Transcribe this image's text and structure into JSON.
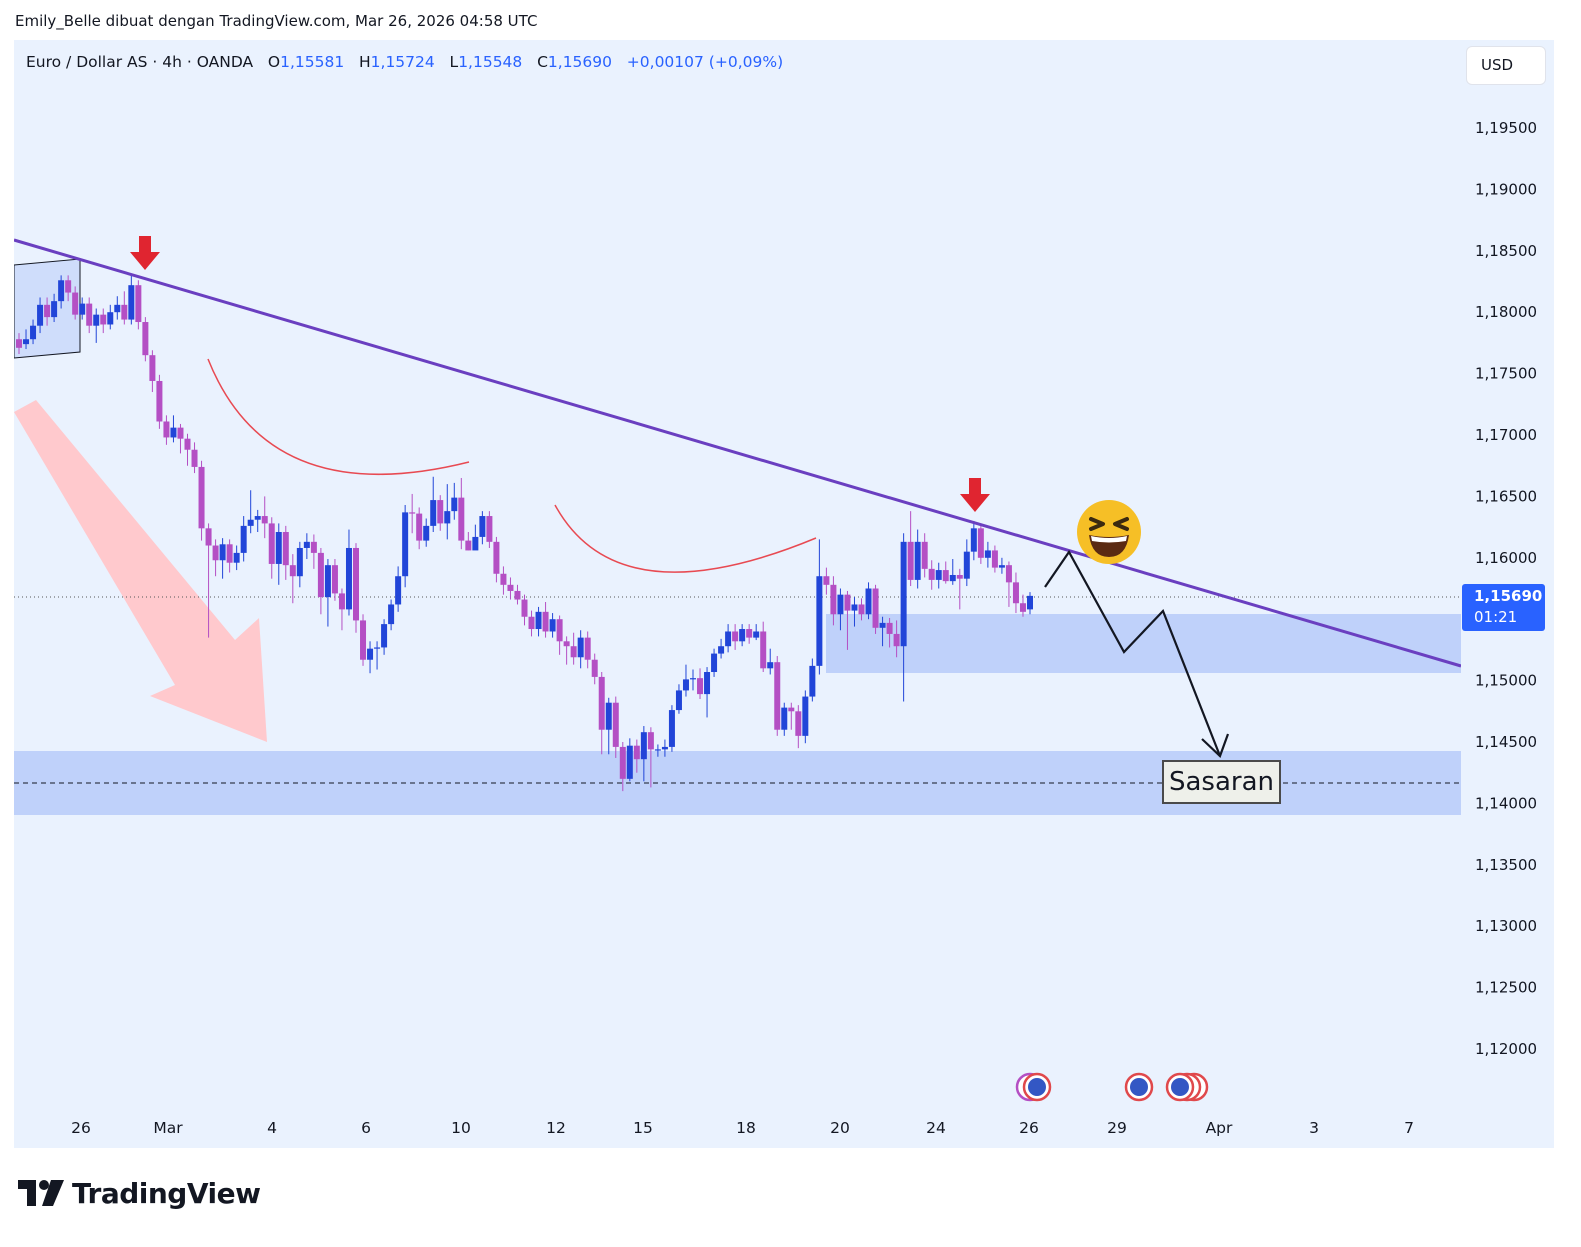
{
  "attribution": "Emily_Belle dibuat dengan TradingView.com, Mar 26, 2026 04:58 UTC",
  "header": {
    "symbol": "Euro / Dollar AS · 4h · OANDA",
    "open_label": "O",
    "open": "1,15581",
    "high_label": "H",
    "high": "1,15724",
    "low_label": "L",
    "low": "1,15548",
    "close_label": "C",
    "close": "1,15690",
    "change": "+0,00107 (+0,09%)"
  },
  "currency": "USD",
  "price_tag": {
    "price": "1,15690",
    "countdown": "01:21"
  },
  "target_label": "Sasaran",
  "logo_text": "TradingView",
  "colors": {
    "background": "#eaf2fe",
    "bull": "#2145d8",
    "bear": "#b44fc4",
    "trendline": "#6a3fc0",
    "zone": "#b7cbf9",
    "arrow_marker": "#e02530",
    "arc": "#e84a52",
    "big_arrow": "#ffc9cd",
    "price_tag": "#2962ff"
  },
  "chart_data": {
    "type": "candlestick",
    "title": "Euro / Dollar AS · 4h · OANDA",
    "y_axis": {
      "ticks": [
        "1,19500",
        "1,19000",
        "1,18500",
        "1,18000",
        "1,17500",
        "1,17000",
        "1,16500",
        "1,16000",
        "1,15500",
        "1,15000",
        "1,14500",
        "1,14000",
        "1,13500",
        "1,13000",
        "1,12500",
        "1,12000"
      ],
      "range": [
        1.1165,
        1.2025
      ]
    },
    "x_axis": {
      "ticks": [
        "26",
        "Mar",
        "4",
        "6",
        "10",
        "12",
        "15",
        "18",
        "20",
        "24",
        "26",
        "29",
        "Apr",
        "3",
        "7"
      ]
    },
    "last_price": 1.1569,
    "candles": [
      [
        1.1778,
        1.1771,
        1.1783,
        1.1766
      ],
      [
        1.1774,
        1.1778,
        1.1786,
        1.177
      ],
      [
        1.1778,
        1.1789,
        1.1794,
        1.1774
      ],
      [
        1.1789,
        1.1806,
        1.1812,
        1.1783
      ],
      [
        1.1806,
        1.1796,
        1.1812,
        1.1789
      ],
      [
        1.1796,
        1.1809,
        1.1815,
        1.1792
      ],
      [
        1.1809,
        1.1826,
        1.183,
        1.1803
      ],
      [
        1.1826,
        1.1816,
        1.183,
        1.1809
      ],
      [
        1.1816,
        1.1798,
        1.1821,
        1.1794
      ],
      [
        1.1798,
        1.1807,
        1.1812,
        1.1794
      ],
      [
        1.1807,
        1.1789,
        1.1812,
        1.1783
      ],
      [
        1.1789,
        1.1798,
        1.1803,
        1.1775
      ],
      [
        1.1798,
        1.179,
        1.1803,
        1.1783
      ],
      [
        1.179,
        1.18,
        1.1806,
        1.1786
      ],
      [
        1.18,
        1.1806,
        1.1813,
        1.1794
      ],
      [
        1.1806,
        1.1794,
        1.1817,
        1.179
      ],
      [
        1.1794,
        1.1822,
        1.183,
        1.179
      ],
      [
        1.1822,
        1.1792,
        1.1826,
        1.1786
      ],
      [
        1.1792,
        1.1765,
        1.1796,
        1.176
      ],
      [
        1.1765,
        1.1744,
        1.1769,
        1.1735
      ],
      [
        1.1744,
        1.1711,
        1.1749,
        1.1705
      ],
      [
        1.1711,
        1.1698,
        1.1716,
        1.1692
      ],
      [
        1.1698,
        1.1706,
        1.1716,
        1.1694
      ],
      [
        1.1706,
        1.1697,
        1.1709,
        1.1685
      ],
      [
        1.1697,
        1.1688,
        1.1701,
        1.1675
      ],
      [
        1.1688,
        1.1674,
        1.1694,
        1.1669
      ],
      [
        1.1674,
        1.1624,
        1.1679,
        1.1614
      ],
      [
        1.1624,
        1.161,
        1.1628,
        1.1535
      ],
      [
        1.161,
        1.1598,
        1.1615,
        1.1585
      ],
      [
        1.1598,
        1.1611,
        1.1616,
        1.1583
      ],
      [
        1.1611,
        1.1596,
        1.1615,
        1.1588
      ],
      [
        1.1596,
        1.1604,
        1.161,
        1.159
      ],
      [
        1.1604,
        1.1626,
        1.1634,
        1.1597
      ],
      [
        1.1626,
        1.1631,
        1.1655,
        1.162
      ],
      [
        1.1631,
        1.1634,
        1.1639,
        1.1621
      ],
      [
        1.1634,
        1.1628,
        1.165,
        1.1616
      ],
      [
        1.1628,
        1.1595,
        1.1633,
        1.1583
      ],
      [
        1.1595,
        1.1621,
        1.1628,
        1.1578
      ],
      [
        1.1621,
        1.1594,
        1.1626,
        1.1582
      ],
      [
        1.1594,
        1.1585,
        1.1603,
        1.1563
      ],
      [
        1.1585,
        1.1608,
        1.1613,
        1.1576
      ],
      [
        1.1608,
        1.1613,
        1.162,
        1.1599
      ],
      [
        1.1613,
        1.1604,
        1.1619,
        1.1591
      ],
      [
        1.1604,
        1.1568,
        1.1608,
        1.1554
      ],
      [
        1.1568,
        1.1594,
        1.1599,
        1.1544
      ],
      [
        1.1594,
        1.1571,
        1.1599,
        1.1565
      ],
      [
        1.1571,
        1.1558,
        1.1575,
        1.1541
      ],
      [
        1.1558,
        1.1608,
        1.1623,
        1.1553
      ],
      [
        1.1608,
        1.1549,
        1.1612,
        1.1539
      ],
      [
        1.1549,
        1.1517,
        1.1554,
        1.1512
      ],
      [
        1.1517,
        1.1526,
        1.1532,
        1.1506
      ],
      [
        1.1526,
        1.1527,
        1.1532,
        1.1509
      ],
      [
        1.1527,
        1.1546,
        1.155,
        1.1521
      ],
      [
        1.1546,
        1.1562,
        1.1566,
        1.1541
      ],
      [
        1.1562,
        1.1585,
        1.1593,
        1.1556
      ],
      [
        1.1585,
        1.1637,
        1.1643,
        1.1576
      ],
      [
        1.1637,
        1.1636,
        1.1652,
        1.162
      ],
      [
        1.1636,
        1.1614,
        1.1641,
        1.1607
      ],
      [
        1.1614,
        1.1626,
        1.1632,
        1.1609
      ],
      [
        1.1626,
        1.1647,
        1.1666,
        1.1621
      ],
      [
        1.1647,
        1.1628,
        1.1651,
        1.1622
      ],
      [
        1.1628,
        1.1638,
        1.166,
        1.1615
      ],
      [
        1.1638,
        1.1649,
        1.1661,
        1.1631
      ],
      [
        1.1649,
        1.1614,
        1.1665,
        1.1607
      ],
      [
        1.1614,
        1.1606,
        1.1621,
        1.1606
      ],
      [
        1.1606,
        1.1617,
        1.1627,
        1.1609
      ],
      [
        1.1617,
        1.1634,
        1.1638,
        1.1611
      ],
      [
        1.1634,
        1.1613,
        1.1638,
        1.1608
      ],
      [
        1.1613,
        1.1587,
        1.1617,
        1.158
      ],
      [
        1.1587,
        1.1578,
        1.1593,
        1.157
      ],
      [
        1.1578,
        1.1573,
        1.1584,
        1.1566
      ],
      [
        1.1573,
        1.1566,
        1.1578,
        1.1562
      ],
      [
        1.1566,
        1.1552,
        1.157,
        1.1545
      ],
      [
        1.1552,
        1.1542,
        1.1557,
        1.1536
      ],
      [
        1.1542,
        1.1556,
        1.156,
        1.1536
      ],
      [
        1.1556,
        1.154,
        1.1564,
        1.1535
      ],
      [
        1.154,
        1.155,
        1.1555,
        1.1535
      ],
      [
        1.155,
        1.1532,
        1.1553,
        1.1521
      ],
      [
        1.1532,
        1.1528,
        1.1536,
        1.1513
      ],
      [
        1.1528,
        1.1519,
        1.1539,
        1.1513
      ],
      [
        1.1519,
        1.1535,
        1.1541,
        1.151
      ],
      [
        1.1535,
        1.1517,
        1.154,
        1.151
      ],
      [
        1.1517,
        1.1503,
        1.1522,
        1.1497
      ],
      [
        1.1503,
        1.146,
        1.1507,
        1.144
      ],
      [
        1.146,
        1.1482,
        1.1486,
        1.144
      ],
      [
        1.1482,
        1.1446,
        1.1487,
        1.1437
      ],
      [
        1.1446,
        1.142,
        1.145,
        1.141
      ],
      [
        1.142,
        1.1447,
        1.1453,
        1.1418
      ],
      [
        1.1447,
        1.1436,
        1.1452,
        1.1425
      ],
      [
        1.1436,
        1.1458,
        1.1463,
        1.1418
      ],
      [
        1.1458,
        1.1444,
        1.1462,
        1.1413
      ],
      [
        1.1444,
        1.1444,
        1.1448,
        1.1438
      ],
      [
        1.1444,
        1.1446,
        1.1452,
        1.1438
      ],
      [
        1.1446,
        1.1476,
        1.148,
        1.1442
      ],
      [
        1.1476,
        1.1492,
        1.1497,
        1.1473
      ],
      [
        1.1492,
        1.1501,
        1.1513,
        1.1487
      ],
      [
        1.1501,
        1.1502,
        1.1509,
        1.1492
      ],
      [
        1.1502,
        1.1489,
        1.151,
        1.1485
      ],
      [
        1.1489,
        1.1507,
        1.1511,
        1.147
      ],
      [
        1.1507,
        1.1522,
        1.1526,
        1.1503
      ],
      [
        1.1522,
        1.1528,
        1.1534,
        1.1518
      ],
      [
        1.1528,
        1.154,
        1.1546,
        1.1523
      ],
      [
        1.154,
        1.1532,
        1.1546,
        1.1525
      ],
      [
        1.1532,
        1.1542,
        1.1546,
        1.1528
      ],
      [
        1.1542,
        1.1535,
        1.1546,
        1.153
      ],
      [
        1.1535,
        1.154,
        1.1546,
        1.1533
      ],
      [
        1.154,
        1.151,
        1.1548,
        1.1507
      ],
      [
        1.151,
        1.1515,
        1.1526,
        1.1505
      ],
      [
        1.1515,
        1.146,
        1.152,
        1.1455
      ],
      [
        1.146,
        1.1478,
        1.1482,
        1.1455
      ],
      [
        1.1478,
        1.1475,
        1.1482,
        1.146
      ],
      [
        1.1475,
        1.1455,
        1.148,
        1.1445
      ],
      [
        1.1455,
        1.1487,
        1.1492,
        1.1449
      ],
      [
        1.1487,
        1.1512,
        1.1518,
        1.1483
      ],
      [
        1.1512,
        1.1585,
        1.1615,
        1.1505
      ],
      [
        1.1585,
        1.1578,
        1.1592,
        1.157
      ],
      [
        1.1578,
        1.1554,
        1.1585,
        1.1545
      ],
      [
        1.1554,
        1.157,
        1.1575,
        1.1541
      ],
      [
        1.157,
        1.1557,
        1.1573,
        1.1525
      ],
      [
        1.1557,
        1.1562,
        1.1568,
        1.1544
      ],
      [
        1.1562,
        1.1554,
        1.1567,
        1.1549
      ],
      [
        1.1554,
        1.1575,
        1.158,
        1.155
      ],
      [
        1.1575,
        1.1543,
        1.1578,
        1.1538
      ],
      [
        1.1543,
        1.1547,
        1.1552,
        1.1528
      ],
      [
        1.1547,
        1.1538,
        1.1551,
        1.1527
      ],
      [
        1.1538,
        1.1528,
        1.1549,
        1.1519
      ],
      [
        1.1528,
        1.1613,
        1.162,
        1.1483
      ],
      [
        1.1613,
        1.1582,
        1.1638,
        1.1577
      ],
      [
        1.1582,
        1.1613,
        1.1623,
        1.1575
      ],
      [
        1.1613,
        1.1591,
        1.162,
        1.1584
      ],
      [
        1.1591,
        1.1582,
        1.1598,
        1.1574
      ],
      [
        1.1582,
        1.159,
        1.1596,
        1.1575
      ],
      [
        1.159,
        1.1581,
        1.1597,
        1.1579
      ],
      [
        1.1581,
        1.1586,
        1.1599,
        1.1578
      ],
      [
        1.1586,
        1.1583,
        1.1591,
        1.1558
      ],
      [
        1.1583,
        1.1605,
        1.1615,
        1.1577
      ],
      [
        1.1605,
        1.1624,
        1.163,
        1.1598
      ],
      [
        1.1624,
        1.16,
        1.1628,
        1.1595
      ],
      [
        1.16,
        1.1606,
        1.1613,
        1.1592
      ],
      [
        1.1606,
        1.1592,
        1.161,
        1.1588
      ],
      [
        1.1592,
        1.1594,
        1.16,
        1.1587
      ],
      [
        1.1594,
        1.158,
        1.1597,
        1.156
      ],
      [
        1.158,
        1.1563,
        1.1588,
        1.1555
      ],
      [
        1.1563,
        1.1556,
        1.157,
        1.1552
      ],
      [
        1.1558,
        1.1569,
        1.1572,
        1.1554
      ]
    ]
  }
}
